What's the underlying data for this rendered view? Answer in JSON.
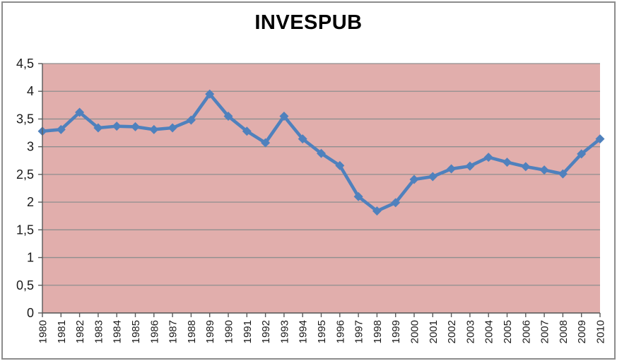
{
  "window": {
    "background": "#ffffff",
    "border_color": "#8c8c8c"
  },
  "chart_data": {
    "type": "line",
    "title": "INVESPUB",
    "xlabel": "",
    "ylabel": "",
    "x": [
      "1980",
      "1981",
      "1982",
      "1983",
      "1984",
      "1985",
      "1986",
      "1987",
      "1988",
      "1989",
      "1990",
      "1991",
      "1992",
      "1993",
      "1994",
      "1995",
      "1996",
      "1997",
      "1998",
      "1999",
      "2000",
      "2001",
      "2002",
      "2003",
      "2004",
      "2005",
      "2006",
      "2007",
      "2008",
      "2009",
      "2010"
    ],
    "series": [
      {
        "name": "INVESPUB",
        "values": [
          3.28,
          3.31,
          3.62,
          3.34,
          3.37,
          3.36,
          3.31,
          3.34,
          3.48,
          3.95,
          3.55,
          3.28,
          3.07,
          3.55,
          3.14,
          2.88,
          2.66,
          2.1,
          1.84,
          1.99,
          2.41,
          2.46,
          2.6,
          2.65,
          2.81,
          2.72,
          2.64,
          2.58,
          2.51,
          2.87,
          3.14
        ]
      }
    ],
    "ylim": [
      0,
      4.5
    ],
    "y_tick_values": [
      0,
      0.5,
      1,
      1.5,
      2,
      2.5,
      3,
      3.5,
      4,
      4.5
    ],
    "y_tick_labels": [
      "0",
      "0,5",
      "1",
      "1,5",
      "2",
      "2,5",
      "3",
      "3,5",
      "4",
      "4,5"
    ],
    "decimal_separator": ",",
    "grid": "horizontal",
    "legend_position": "none",
    "marker": "diamond",
    "colors": {
      "line": "#4f81bd",
      "marker": "#4f81bd",
      "plot_background": "#e1aeac",
      "gridline": "#8f8f8f",
      "axis": "#595959",
      "tick_label": "#1a1a1a",
      "title": "#000000"
    }
  }
}
